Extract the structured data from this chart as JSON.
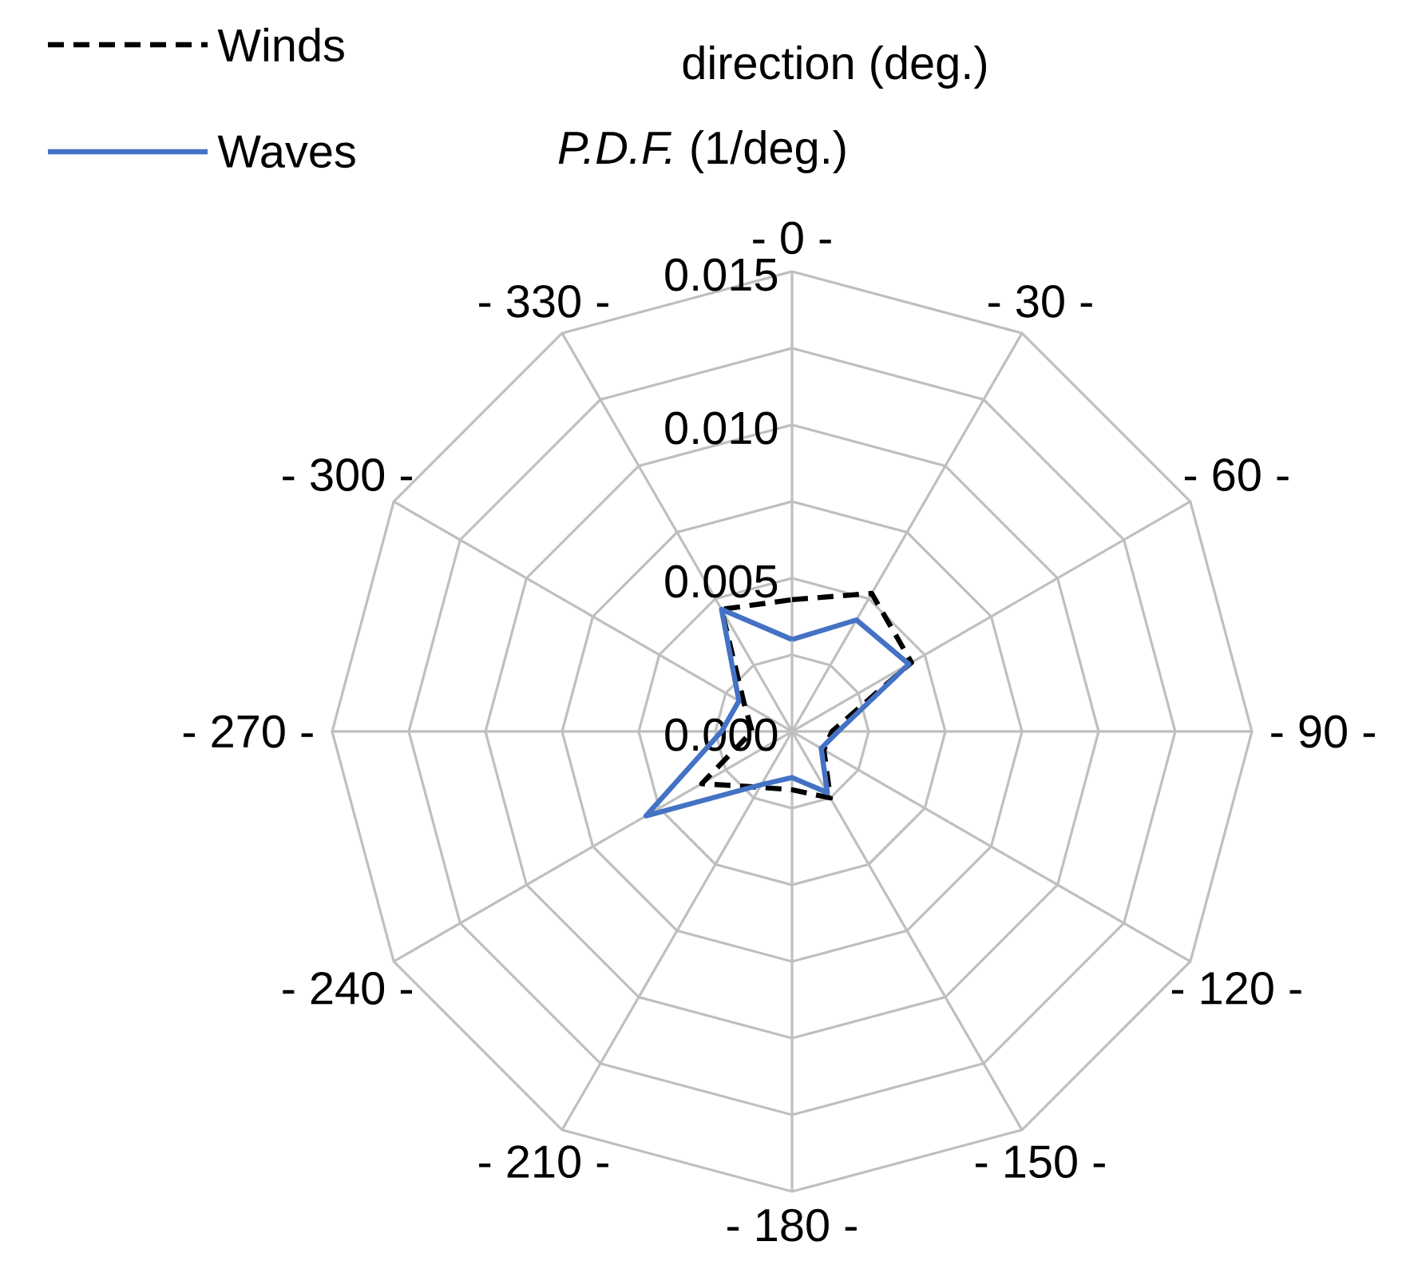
{
  "chart_data": {
    "type": "radar",
    "xlabel": "direction (deg.)",
    "ylabel": "*P.D.F.* (1/deg.)",
    "categories": [
      "- 0 -",
      "- 30 -",
      "- 60 -",
      "- 90 -",
      "- 120 -",
      "- 150 -",
      "- 180 -",
      "- 210 -",
      "- 240 -",
      "- 270 -",
      "- 300 -",
      "- 330 -"
    ],
    "series": [
      {
        "name": "Winds",
        "color": "#000000",
        "line_style": "dashed",
        "values": [
          0.0043,
          0.0052,
          0.0045,
          0.0013,
          0.0012,
          0.0025,
          0.0019,
          0.0021,
          0.0034,
          0.0013,
          0.0018,
          0.0046
        ]
      },
      {
        "name": "Waves",
        "color": "#4472c4",
        "line_style": "solid",
        "values": [
          0.003,
          0.0042,
          0.0044,
          0.0015,
          0.0011,
          0.0023,
          0.0015,
          0.002,
          0.0055,
          0.0023,
          0.002,
          0.0046
        ]
      }
    ],
    "ylim": [
      0,
      0.015
    ],
    "yticks": [
      {
        "value": 0,
        "label": "0.000"
      },
      0.005,
      {
        "value": 0.01,
        "label": "0.010"
      },
      0.015
    ],
    "grid": true,
    "legend": "top left",
    "marker": "none"
  }
}
